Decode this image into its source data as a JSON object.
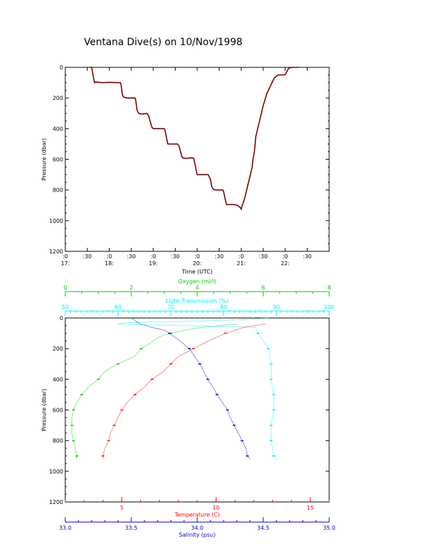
{
  "title": "Ventana Dive(s) on 10/Nov/1998",
  "colors": {
    "axis": "#000000",
    "depth_trace": "#000000",
    "depth_trace_overlay": "#ff0000",
    "oxygen": "#00cc00",
    "light": "#00eeee",
    "temperature": "#ff0000",
    "salinity": "#0000cc"
  },
  "chart_data": [
    {
      "type": "line",
      "title": "Ventana Dive(s) on 10/Nov/1998",
      "xlabel": "Time (UTC)",
      "ylabel": "Pressure (dbar)",
      "x_units": "minutes since 17:00 UTC",
      "xlim": [
        0,
        360
      ],
      "ylim": [
        1200,
        0
      ],
      "x_ticks": [
        {
          "value": 0,
          "line1": ":0",
          "line2": "17:"
        },
        {
          "value": 30,
          "line1": ":30",
          "line2": ""
        },
        {
          "value": 60,
          "line1": ":0",
          "line2": "18:"
        },
        {
          "value": 90,
          "line1": ":30",
          "line2": ""
        },
        {
          "value": 120,
          "line1": ":0",
          "line2": "19:"
        },
        {
          "value": 150,
          "line1": ":30",
          "line2": ""
        },
        {
          "value": 180,
          "line1": ":0",
          "line2": "20:"
        },
        {
          "value": 210,
          "line1": ":30",
          "line2": ""
        },
        {
          "value": 240,
          "line1": ":0",
          "line2": "21:"
        },
        {
          "value": 270,
          "line1": ":30",
          "line2": ""
        },
        {
          "value": 300,
          "line1": ":0",
          "line2": "22:"
        },
        {
          "value": 330,
          "line1": ":30",
          "line2": ""
        }
      ],
      "y_ticks": [
        0,
        200,
        400,
        600,
        800,
        1000,
        1200
      ],
      "series": [
        {
          "x": [
            33,
            35,
            36,
            39,
            40,
            42,
            50,
            60,
            70,
            75,
            76,
            78,
            80,
            85,
            90,
            95,
            96,
            98,
            100,
            105,
            110,
            112,
            114,
            118,
            120,
            125,
            130,
            135,
            136,
            139,
            140,
            145,
            150,
            153,
            155,
            159,
            160,
            165,
            170,
            175,
            176,
            179,
            180,
            185,
            190,
            195,
            198,
            200,
            202,
            205,
            210,
            215,
            216,
            219,
            220,
            230,
            235,
            236,
            239,
            240,
            245,
            250,
            255,
            256,
            258,
            260,
            265,
            270,
            275,
            280,
            285,
            290,
            295,
            300,
            302,
            305,
            310,
            315,
            318
          ],
          "values": [
            0,
            0,
            0,
            80,
            100,
            95,
            100,
            98,
            100,
            100,
            110,
            180,
            195,
            200,
            200,
            200,
            210,
            280,
            300,
            305,
            300,
            302,
            320,
            390,
            400,
            400,
            400,
            400,
            410,
            480,
            500,
            500,
            500,
            500,
            510,
            580,
            590,
            595,
            590,
            592,
            610,
            680,
            700,
            700,
            700,
            700,
            730,
            780,
            795,
            800,
            800,
            800,
            810,
            880,
            895,
            895,
            900,
            905,
            915,
            925,
            850,
            750,
            650,
            600,
            550,
            450,
            350,
            250,
            170,
            120,
            70,
            50,
            50,
            48,
            30,
            5,
            0,
            0,
            0
          ]
        }
      ]
    },
    {
      "type": "scatter",
      "ylabel": "Pressure (dbar)",
      "ylim": [
        1200,
        0
      ],
      "y_ticks": [
        0,
        200,
        400,
        600,
        800,
        1000,
        1200
      ],
      "axes": [
        {
          "key": "oxygen",
          "label": "Oxygen (ml/l)",
          "position": "top",
          "range": [
            0,
            8
          ],
          "ticks": [
            0,
            2,
            4,
            6,
            8
          ],
          "tick_labels": [
            "0",
            "2",
            "4",
            "6",
            "8"
          ]
        },
        {
          "key": "light",
          "label": "Light Transmission (%)",
          "position": "top",
          "range": [
            50,
            100
          ],
          "ticks": [
            50,
            60,
            70,
            80,
            90,
            100
          ],
          "tick_labels": [
            "50",
            "60",
            "70",
            "80",
            "90",
            "100"
          ]
        },
        {
          "key": "temperature",
          "label": "Temperature (C)",
          "position": "bottom",
          "range": [
            2,
            16
          ],
          "ticks": [
            5,
            10,
            15
          ],
          "tick_labels": [
            "5",
            "10",
            "15"
          ]
        },
        {
          "key": "salinity",
          "label": "Salinity (psu)",
          "position": "bottom",
          "range": [
            33.0,
            35.0
          ],
          "ticks": [
            33.0,
            33.5,
            34.0,
            34.5,
            35.0
          ],
          "tick_labels": [
            "33.0",
            "33.5",
            "34.0",
            "34.5",
            "35.0"
          ]
        }
      ],
      "series": [
        {
          "key": "oxygen",
          "pressure": [
            40,
            60,
            80,
            100,
            110,
            130,
            160,
            200,
            250,
            300,
            320,
            350,
            400,
            450,
            500,
            550,
            600,
            650,
            700,
            750,
            800,
            850,
            900,
            920
          ],
          "values": [
            5.2,
            4.2,
            3.6,
            3.2,
            3.0,
            2.8,
            2.6,
            2.3,
            2.1,
            1.6,
            1.4,
            1.2,
            1.0,
            0.7,
            0.5,
            0.35,
            0.25,
            0.2,
            0.2,
            0.2,
            0.25,
            0.3,
            0.35,
            0.35
          ]
        },
        {
          "key": "light",
          "pressure": [
            0,
            10,
            20,
            30,
            40,
            60,
            100,
            150,
            200,
            300,
            400,
            500,
            600,
            700,
            800,
            900,
            920
          ],
          "values": [
            88.5,
            84.0,
            76.0,
            62.0,
            60.0,
            86.0,
            86.5,
            87.5,
            88.5,
            89.0,
            89.0,
            89.5,
            89.5,
            89.0,
            89.0,
            89.5,
            90.0
          ]
        },
        {
          "key": "temperature",
          "pressure": [
            40,
            60,
            100,
            150,
            200,
            250,
            300,
            350,
            400,
            450,
            500,
            550,
            600,
            650,
            700,
            750,
            800,
            850,
            900,
            920
          ],
          "values": [
            12.6,
            11.5,
            10.5,
            9.6,
            8.8,
            8.0,
            7.6,
            7.2,
            6.6,
            6.2,
            5.7,
            5.3,
            5.0,
            4.8,
            4.6,
            4.4,
            4.3,
            4.1,
            4.0,
            4.0
          ]
        },
        {
          "key": "salinity",
          "pressure": [
            0,
            40,
            60,
            80,
            100,
            150,
            200,
            250,
            300,
            350,
            400,
            450,
            500,
            550,
            600,
            650,
            700,
            750,
            800,
            850,
            900,
            920
          ],
          "values": [
            33.5,
            33.57,
            33.65,
            33.75,
            33.79,
            33.87,
            33.94,
            33.98,
            34.02,
            34.05,
            34.08,
            34.12,
            34.15,
            34.19,
            34.23,
            34.25,
            34.28,
            34.31,
            34.34,
            34.37,
            34.38,
            34.4
          ]
        }
      ]
    }
  ]
}
